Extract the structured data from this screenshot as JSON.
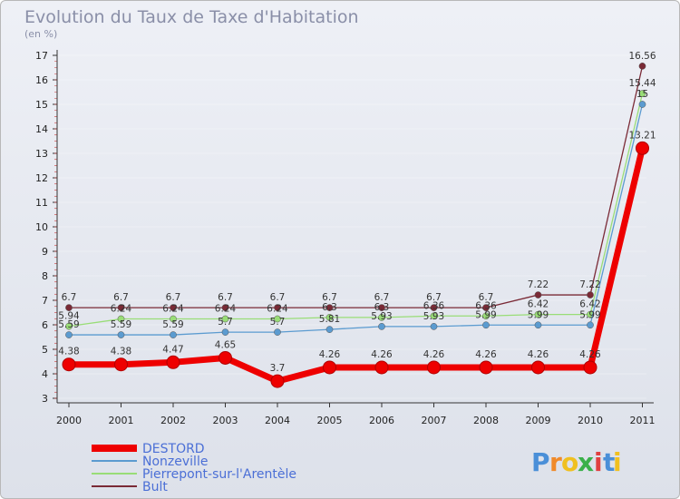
{
  "chart_data": {
    "type": "line",
    "title": "Evolution du Taux de Taxe d'Habitation",
    "subtitle": "(en %)",
    "xlabel": "",
    "ylabel": "",
    "categories": [
      "2000",
      "2001",
      "2002",
      "2003",
      "2004",
      "2005",
      "2006",
      "2007",
      "2008",
      "2009",
      "2010",
      "2011"
    ],
    "ylim": [
      3,
      17
    ],
    "yticks": [
      "3",
      "4",
      "5",
      "6",
      "7",
      "8",
      "9",
      "10",
      "11",
      "12",
      "13",
      "14",
      "15",
      "16",
      "17"
    ],
    "series": [
      {
        "name": "Bult",
        "color": "#7a2a36",
        "values": [
          6.7,
          6.7,
          6.7,
          6.7,
          6.7,
          6.7,
          6.7,
          6.7,
          6.7,
          7.22,
          7.22,
          16.56
        ],
        "labels": [
          "6.7",
          "6.7",
          "6.7",
          "6.7",
          "6.7",
          "6.7",
          "6.7",
          "6.7",
          "6.7",
          "7.22",
          "7.22",
          "16.56"
        ]
      },
      {
        "name": "Pierrepont-sur-l'Arentèle",
        "color": "#99dd77",
        "values": [
          5.94,
          6.24,
          6.24,
          6.24,
          6.24,
          6.3,
          6.3,
          6.36,
          6.36,
          6.42,
          6.42,
          15.44
        ],
        "labels": [
          "5.94",
          "6.24",
          "6.24",
          "6.24",
          "6.24",
          "6.3",
          "6.3",
          "6.36",
          "6.36",
          "6.42",
          "6.42",
          "15.44"
        ]
      },
      {
        "name": "Nonzeville",
        "color": "#5b9bd0",
        "values": [
          5.59,
          5.59,
          5.59,
          5.7,
          5.7,
          5.81,
          5.93,
          5.93,
          5.99,
          5.99,
          5.99,
          15
        ],
        "labels": [
          "5.59",
          "5.59",
          "5.59",
          "5.7",
          "5.7",
          "5.81",
          "5.93",
          "5.93",
          "5.99",
          "5.99",
          "5.99",
          "15"
        ]
      },
      {
        "name": "DESTORD",
        "color": "#ee0000",
        "values": [
          4.38,
          4.38,
          4.47,
          4.65,
          3.7,
          4.26,
          4.26,
          4.26,
          4.26,
          4.26,
          4.26,
          13.21
        ],
        "labels": [
          "4.38",
          "4.38",
          "4.47",
          "4.65",
          "3.7",
          "4.26",
          "4.26",
          "4.26",
          "4.26",
          "4.26",
          "4.26",
          "13.21"
        ]
      }
    ],
    "legend": [
      "DESTORD",
      "Nonzeville",
      "Pierrepont-sur-l'Arentèle",
      "Bult"
    ],
    "legend_position": "bottom-left"
  },
  "logo": {
    "letters": [
      "P",
      "r",
      "o",
      "x",
      "i",
      "t",
      "i"
    ],
    "colors": [
      "#4a8fd8",
      "#f08a2a",
      "#f0c020",
      "#3ab04a",
      "#e04040",
      "#4a8fd8",
      "#f0c020"
    ]
  }
}
